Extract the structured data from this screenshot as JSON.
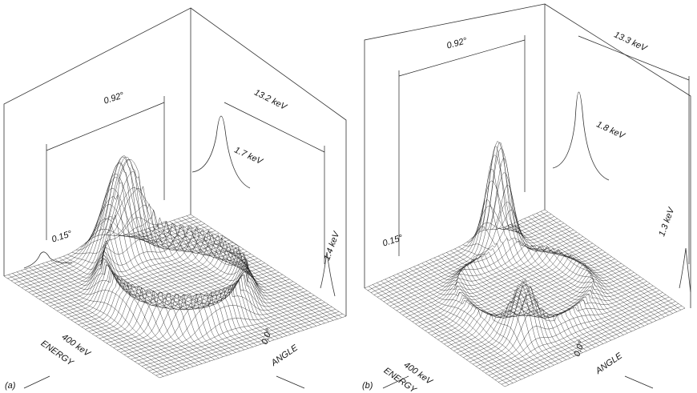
{
  "panels": [
    {
      "label": "(a)",
      "angle_width": "0.92°",
      "energy_width": "13.2 keV",
      "peak_energy_width": "1.7 keV",
      "peak_angle_width": "0.15°",
      "ring_energy_width": "1.4 keV",
      "energy_scale": "400 keV",
      "energy_axis": "ENERGY",
      "angle_scale": "0.0°",
      "angle_axis": "ANGLE"
    },
    {
      "label": "(b)",
      "angle_width": "0.92°",
      "energy_width": "13.3 keV",
      "peak_energy_width": "1.8 keV",
      "peak_angle_width": "0.15°",
      "ring_energy_width": "1.3 keV",
      "energy_scale": "400 keV",
      "energy_axis": "ENERGY",
      "angle_scale": "0.0°",
      "angle_axis": "ANGLE"
    }
  ]
}
